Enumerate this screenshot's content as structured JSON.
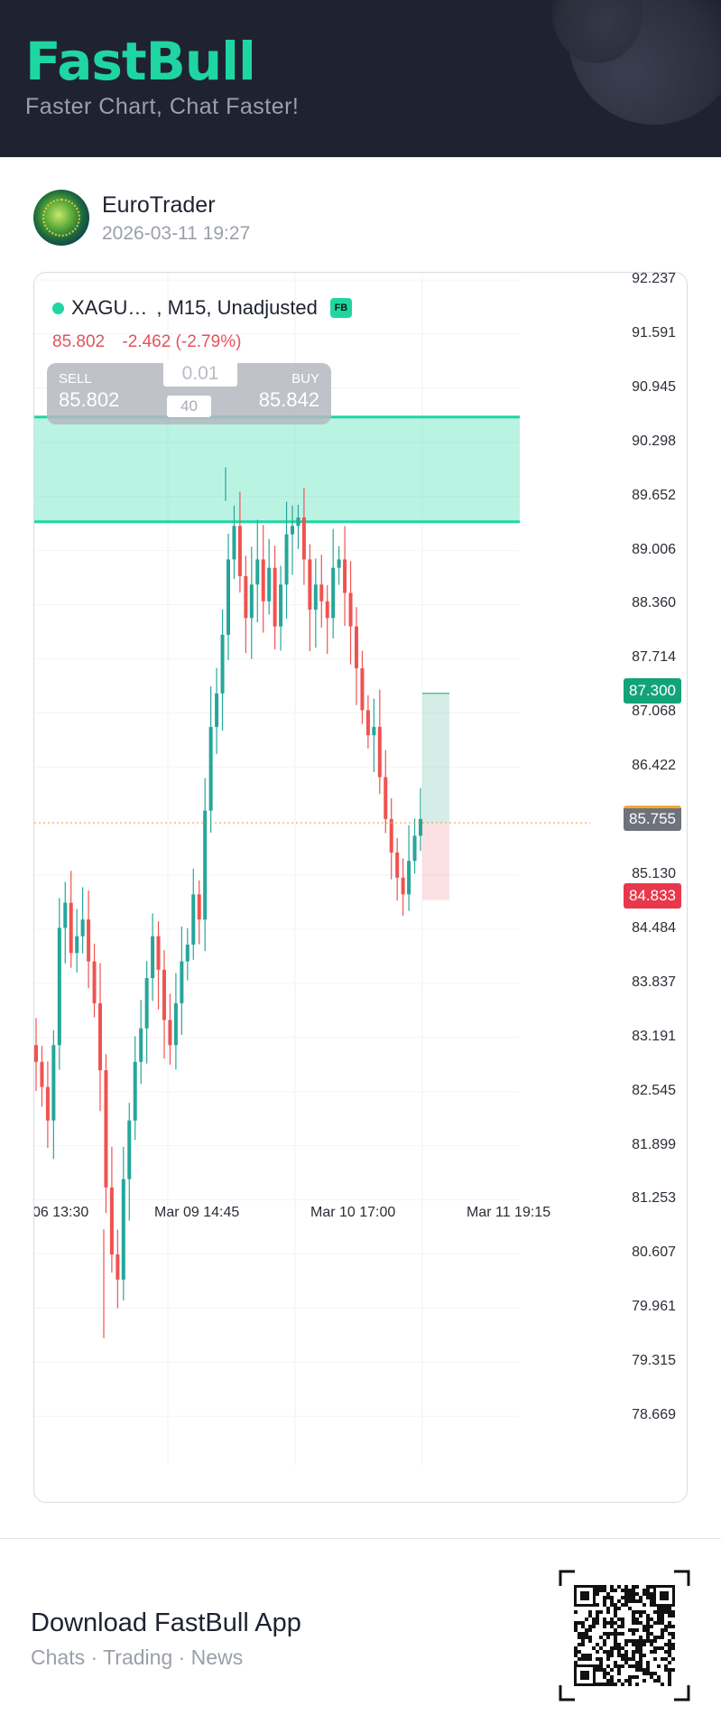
{
  "header": {
    "brand": "FastBull",
    "tagline": "Faster Chart, Chat Faster!"
  },
  "post": {
    "author": "EuroTrader",
    "timestamp": "2026-03-11 19:27",
    "avatar_icon": "globe-avatar-icon"
  },
  "chart_header": {
    "symbol": "XAGU…",
    "meta": ", M15, Unadjusted",
    "badge": "FB",
    "last_price": "85.802",
    "change": "-2.462 (-2.79%)"
  },
  "trade_panel": {
    "sell_label": "SELL",
    "sell_price": "85.802",
    "buy_label": "BUY",
    "buy_price": "85.842",
    "lot": "0.01",
    "quantity": "40"
  },
  "chart_data": {
    "type": "candlestick",
    "y_ticks": [
      "92.237",
      "91.591",
      "90.945",
      "90.298",
      "89.652",
      "89.006",
      "88.360",
      "87.714",
      "87.068",
      "86.422",
      "85.130",
      "84.484",
      "83.837",
      "83.191",
      "82.545",
      "81.899",
      "81.253",
      "80.607",
      "79.961",
      "79.315",
      "78.669"
    ],
    "ylim": [
      78.1,
      92.4
    ],
    "x_ticks": [
      "06 13:30",
      "Mar 09 14:45",
      "Mar 10 17:00",
      "Mar 11 19:15"
    ],
    "price_tags": {
      "take_profit": "87.300",
      "current": "85.755",
      "stop_loss": "84.833"
    },
    "zone": {
      "top": 90.6,
      "bottom": 89.35
    },
    "grid": true,
    "colors": {
      "up": "#26a69a",
      "down": "#ef5350",
      "zone": "#1fd6a3",
      "tp": "#12a37a",
      "sl": "#e8384b",
      "current": "#6e727c"
    },
    "candles_close": [
      82.9,
      82.6,
      82.2,
      83.1,
      84.5,
      84.8,
      84.2,
      84.4,
      84.6,
      84.1,
      83.6,
      82.8,
      81.4,
      80.6,
      80.3,
      81.5,
      82.2,
      82.9,
      83.3,
      83.9,
      84.4,
      84.0,
      83.4,
      83.1,
      83.6,
      84.1,
      84.3,
      84.9,
      84.6,
      85.9,
      86.9,
      87.3,
      88.0,
      88.9,
      89.3,
      88.7,
      88.2,
      88.6,
      88.9,
      88.4,
      88.8,
      88.1,
      88.6,
      89.2,
      89.3,
      89.4,
      88.9,
      88.3,
      88.6,
      88.4,
      88.2,
      88.8,
      88.9,
      88.5,
      88.1,
      87.6,
      87.1,
      86.8,
      86.9,
      86.3,
      85.8,
      85.4,
      85.1,
      84.9,
      85.3,
      85.6,
      85.8
    ]
  },
  "footer": {
    "title": "Download FastBull App",
    "subtitle": "Chats · Trading · News"
  }
}
